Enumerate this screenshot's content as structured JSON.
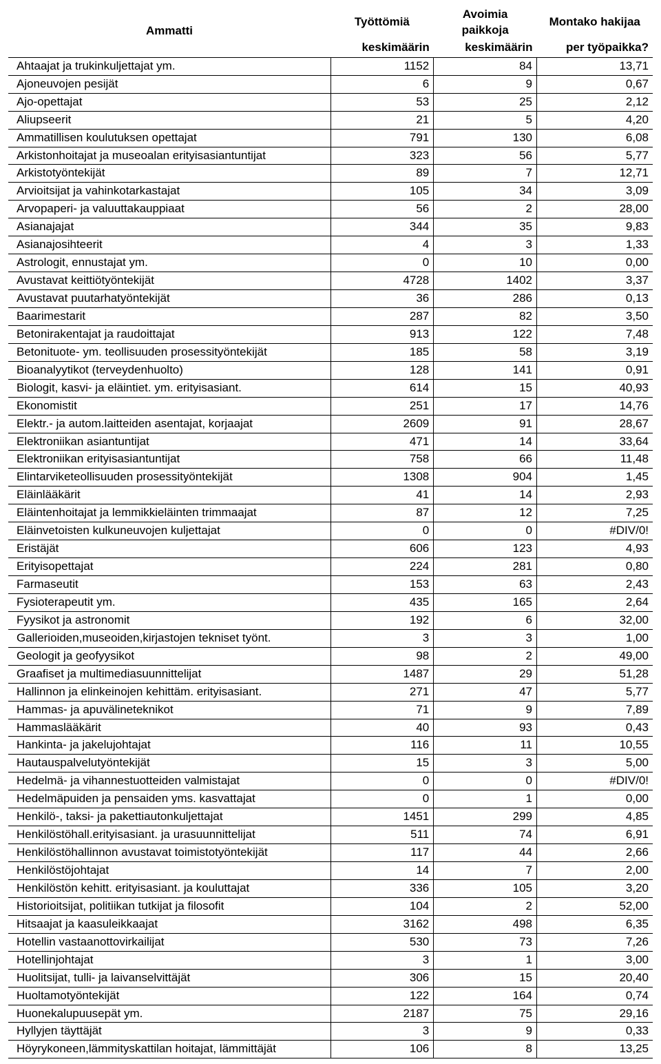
{
  "header": {
    "col1_label": "Ammatti",
    "col2_top": "Työttömiä",
    "col2_bottom": "keskimäärin",
    "col3_top": "Avoimia paikkoja",
    "col3_bottom": "keskimäärin",
    "col4_top": "Montako hakijaa",
    "col4_bottom": "per työpaikka?"
  },
  "rows": [
    {
      "name": "Ahtaajat ja trukinkuljettajat ym.",
      "c1": "1152",
      "c2": "84",
      "c3": "13,71"
    },
    {
      "name": "Ajoneuvojen pesijät",
      "c1": "6",
      "c2": "9",
      "c3": "0,67"
    },
    {
      "name": "Ajo-opettajat",
      "c1": "53",
      "c2": "25",
      "c3": "2,12"
    },
    {
      "name": "Aliupseerit",
      "c1": "21",
      "c2": "5",
      "c3": "4,20"
    },
    {
      "name": "Ammatillisen koulutuksen opettajat",
      "c1": "791",
      "c2": "130",
      "c3": "6,08"
    },
    {
      "name": "Arkistonhoitajat ja museoalan erityisasiantuntijat",
      "c1": "323",
      "c2": "56",
      "c3": "5,77"
    },
    {
      "name": "Arkistotyöntekijät",
      "c1": "89",
      "c2": "7",
      "c3": "12,71"
    },
    {
      "name": "Arvioitsijat ja vahinkotarkastajat",
      "c1": "105",
      "c2": "34",
      "c3": "3,09"
    },
    {
      "name": "Arvopaperi- ja valuuttakauppiaat",
      "c1": "56",
      "c2": "2",
      "c3": "28,00"
    },
    {
      "name": "Asianajajat",
      "c1": "344",
      "c2": "35",
      "c3": "9,83"
    },
    {
      "name": "Asianajosihteerit",
      "c1": "4",
      "c2": "3",
      "c3": "1,33"
    },
    {
      "name": "Astrologit, ennustajat ym.",
      "c1": "0",
      "c2": "10",
      "c3": "0,00"
    },
    {
      "name": "Avustavat keittiötyöntekijät",
      "c1": "4728",
      "c2": "1402",
      "c3": "3,37"
    },
    {
      "name": "Avustavat puutarhatyöntekijät",
      "c1": "36",
      "c2": "286",
      "c3": "0,13"
    },
    {
      "name": "Baarimestarit",
      "c1": "287",
      "c2": "82",
      "c3": "3,50"
    },
    {
      "name": "Betonirakentajat ja raudoittajat",
      "c1": "913",
      "c2": "122",
      "c3": "7,48"
    },
    {
      "name": "Betonituote- ym. teollisuuden prosessityöntekijät",
      "c1": "185",
      "c2": "58",
      "c3": "3,19"
    },
    {
      "name": "Bioanalyytikot (terveydenhuolto)",
      "c1": "128",
      "c2": "141",
      "c3": "0,91"
    },
    {
      "name": "Biologit, kasvi- ja eläintiet. ym. erityisasiant.",
      "c1": "614",
      "c2": "15",
      "c3": "40,93"
    },
    {
      "name": "Ekonomistit",
      "c1": "251",
      "c2": "17",
      "c3": "14,76"
    },
    {
      "name": "Elektr.- ja autom.laitteiden asentajat, korjaajat",
      "c1": "2609",
      "c2": "91",
      "c3": "28,67"
    },
    {
      "name": "Elektroniikan asiantuntijat",
      "c1": "471",
      "c2": "14",
      "c3": "33,64"
    },
    {
      "name": "Elektroniikan erityisasiantuntijat",
      "c1": "758",
      "c2": "66",
      "c3": "11,48"
    },
    {
      "name": "Elintarviketeollisuuden prosessityöntekijät",
      "c1": "1308",
      "c2": "904",
      "c3": "1,45"
    },
    {
      "name": "Eläinlääkärit",
      "c1": "41",
      "c2": "14",
      "c3": "2,93"
    },
    {
      "name": "Eläintenhoitajat ja lemmikkieläinten trimmaajat",
      "c1": "87",
      "c2": "12",
      "c3": "7,25"
    },
    {
      "name": "Eläinvetoisten kulkuneuvojen kuljettajat",
      "c1": "0",
      "c2": "0",
      "c3": "#DIV/0!"
    },
    {
      "name": "Eristäjät",
      "c1": "606",
      "c2": "123",
      "c3": "4,93"
    },
    {
      "name": "Erityisopettajat",
      "c1": "224",
      "c2": "281",
      "c3": "0,80"
    },
    {
      "name": "Farmaseutit",
      "c1": "153",
      "c2": "63",
      "c3": "2,43"
    },
    {
      "name": "Fysioterapeutit ym.",
      "c1": "435",
      "c2": "165",
      "c3": "2,64"
    },
    {
      "name": "Fyysikot ja astronomit",
      "c1": "192",
      "c2": "6",
      "c3": "32,00"
    },
    {
      "name": "Gallerioiden,museoiden,kirjastojen tekniset työnt.",
      "c1": "3",
      "c2": "3",
      "c3": "1,00"
    },
    {
      "name": "Geologit ja geofyysikot",
      "c1": "98",
      "c2": "2",
      "c3": "49,00"
    },
    {
      "name": "Graafiset ja multimediasuunnittelijat",
      "c1": "1487",
      "c2": "29",
      "c3": "51,28"
    },
    {
      "name": "Hallinnon ja elinkeinojen kehittäm. erityisasiant.",
      "c1": "271",
      "c2": "47",
      "c3": "5,77"
    },
    {
      "name": "Hammas- ja apuvälineteknikot",
      "c1": "71",
      "c2": "9",
      "c3": "7,89"
    },
    {
      "name": "Hammaslääkärit",
      "c1": "40",
      "c2": "93",
      "c3": "0,43"
    },
    {
      "name": "Hankinta- ja jakelujohtajat",
      "c1": "116",
      "c2": "11",
      "c3": "10,55"
    },
    {
      "name": "Hautauspalvelutyöntekijät",
      "c1": "15",
      "c2": "3",
      "c3": "5,00"
    },
    {
      "name": "Hedelmä- ja vihannestuotteiden valmistajat",
      "c1": "0",
      "c2": "0",
      "c3": "#DIV/0!"
    },
    {
      "name": "Hedelmäpuiden ja pensaiden yms. kasvattajat",
      "c1": "0",
      "c2": "1",
      "c3": "0,00"
    },
    {
      "name": "Henkilö-, taksi- ja pakettiautonkuljettajat",
      "c1": "1451",
      "c2": "299",
      "c3": "4,85"
    },
    {
      "name": "Henkilöstöhall.erityisasiant. ja urasuunnittelijat",
      "c1": "511",
      "c2": "74",
      "c3": "6,91"
    },
    {
      "name": "Henkilöstöhallinnon avustavat toimistotyöntekijät",
      "c1": "117",
      "c2": "44",
      "c3": "2,66"
    },
    {
      "name": "Henkilöstöjohtajat",
      "c1": "14",
      "c2": "7",
      "c3": "2,00"
    },
    {
      "name": "Henkilöstön kehitt. erityisasiant. ja kouluttajat",
      "c1": "336",
      "c2": "105",
      "c3": "3,20"
    },
    {
      "name": "Historioitsijat, politiikan tutkijat ja filosofit",
      "c1": "104",
      "c2": "2",
      "c3": "52,00"
    },
    {
      "name": "Hitsaajat ja kaasuleikkaajat",
      "c1": "3162",
      "c2": "498",
      "c3": "6,35"
    },
    {
      "name": "Hotellin vastaanottovirkailijat",
      "c1": "530",
      "c2": "73",
      "c3": "7,26"
    },
    {
      "name": "Hotellinjohtajat",
      "c1": "3",
      "c2": "1",
      "c3": "3,00"
    },
    {
      "name": "Huolitsijat, tulli- ja laivanselvittäjät",
      "c1": "306",
      "c2": "15",
      "c3": "20,40"
    },
    {
      "name": "Huoltamotyöntekijät",
      "c1": "122",
      "c2": "164",
      "c3": "0,74"
    },
    {
      "name": "Huonekalupuusepät ym.",
      "c1": "2187",
      "c2": "75",
      "c3": "29,16"
    },
    {
      "name": "Hyllyjen täyttäjät",
      "c1": "3",
      "c2": "9",
      "c3": "0,33"
    },
    {
      "name": "Höyrykoneen,lämmityskattilan hoitajat, lämmittäjät",
      "c1": "106",
      "c2": "8",
      "c3": "13,25"
    }
  ]
}
